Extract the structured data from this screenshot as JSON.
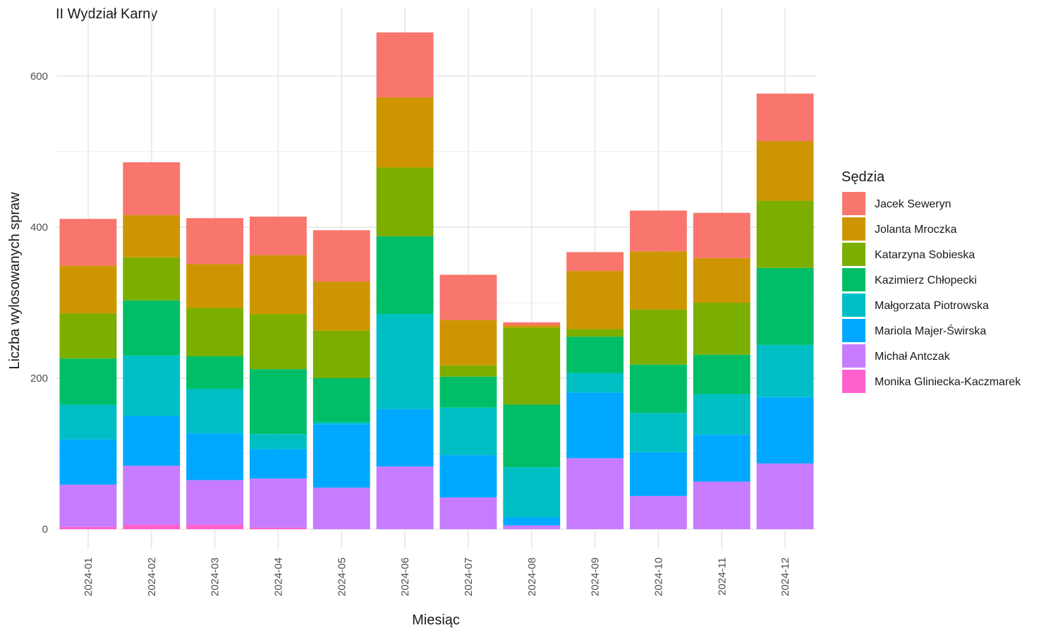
{
  "chart_data": {
    "type": "bar",
    "stacked": true,
    "title": "II Wydział Karny",
    "xlabel": "Miesiąc",
    "ylabel": "Liczba wylosowanych spraw",
    "ylim": [
      -22,
      665
    ],
    "y_ticks": [
      0,
      200,
      400,
      600
    ],
    "grid": true,
    "legend_title": "Sędzia",
    "legend_position": "right",
    "categories": [
      "2024-01",
      "2024-02",
      "2024-03",
      "2024-04",
      "2024-05",
      "2024-06",
      "2024-07",
      "2024-08",
      "2024-09",
      "2024-10",
      "2024-11",
      "2024-12"
    ],
    "series": [
      {
        "name": "Monika Gliniecka-Kaczmarek",
        "color": "#FF61CC",
        "values": [
          3,
          6,
          6,
          2,
          0,
          0,
          0,
          0,
          0,
          0,
          0,
          0
        ]
      },
      {
        "name": "Michał Antczak",
        "color": "#C77CFF",
        "values": [
          56,
          78,
          59,
          65,
          55,
          83,
          42,
          5,
          94,
          44,
          63,
          87
        ]
      },
      {
        "name": "Mariola Majer-Świrska",
        "color": "#00A9FF",
        "values": [
          60,
          66,
          62,
          39,
          84,
          76,
          56,
          11,
          87,
          58,
          62,
          88
        ]
      },
      {
        "name": "Małgorzata Piotrowska",
        "color": "#00BFC4",
        "values": [
          46,
          80,
          59,
          20,
          3,
          126,
          63,
          66,
          26,
          52,
          54,
          69
        ]
      },
      {
        "name": "Kazimierz Chłopecki",
        "color": "#00BE67",
        "values": [
          61,
          73,
          43,
          86,
          58,
          103,
          41,
          83,
          48,
          64,
          52,
          102
        ]
      },
      {
        "name": "Katarzyna Sobieska",
        "color": "#7CAE00",
        "values": [
          60,
          57,
          64,
          73,
          63,
          91,
          15,
          102,
          10,
          73,
          69,
          89
        ]
      },
      {
        "name": "Jolanta Mroczka",
        "color": "#CD9600",
        "values": [
          63,
          56,
          58,
          78,
          65,
          93,
          60,
          3,
          77,
          77,
          59,
          79
        ]
      },
      {
        "name": "Jacek Seweryn",
        "color": "#F8766D",
        "values": [
          62,
          70,
          61,
          51,
          68,
          86,
          60,
          4,
          25,
          54,
          60,
          63
        ]
      }
    ]
  }
}
